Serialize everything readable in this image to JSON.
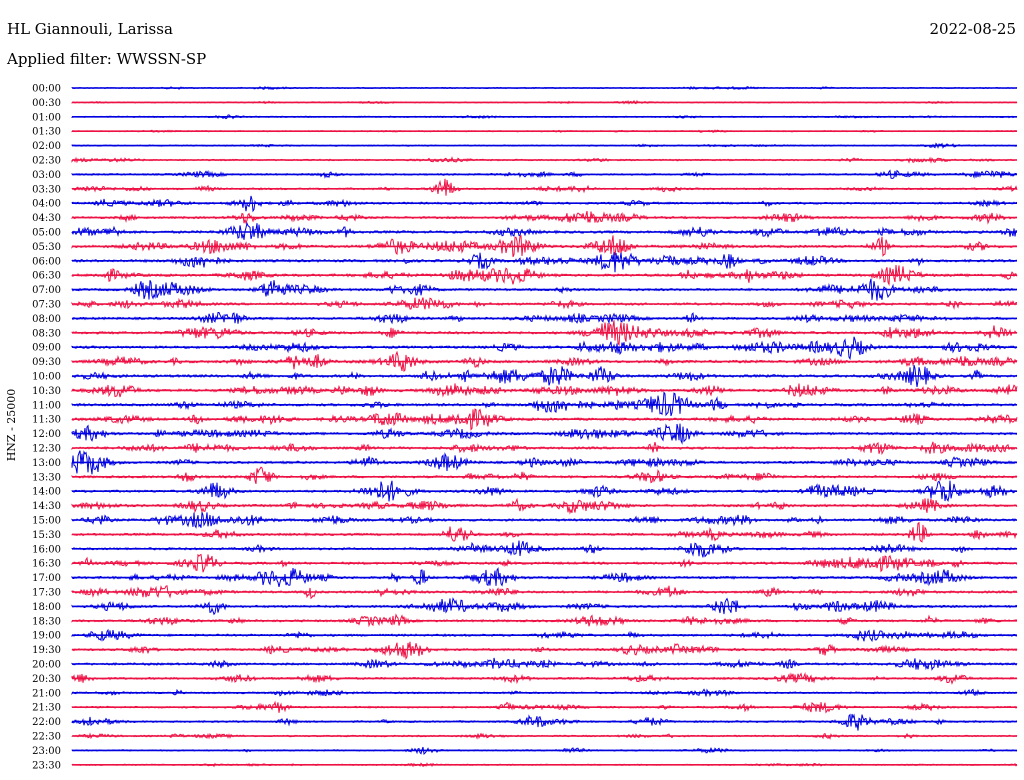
{
  "header": {
    "station": "HL Giannouli, Larissa",
    "date": "2022-08-25",
    "filter": "Applied filter: WWSSN-SP"
  },
  "chart_data": {
    "type": "line",
    "ylabel": "HNZ - 25000",
    "row_labels": [
      "00:00",
      "00:30",
      "01:00",
      "01:30",
      "02:00",
      "02:30",
      "03:00",
      "03:30",
      "04:00",
      "04:30",
      "05:00",
      "05:30",
      "06:00",
      "06:30",
      "07:00",
      "07:30",
      "08:00",
      "08:30",
      "09:00",
      "09:30",
      "10:00",
      "10:30",
      "11:00",
      "11:30",
      "12:00",
      "12:30",
      "13:00",
      "13:30",
      "14:00",
      "14:30",
      "15:00",
      "15:30",
      "16:00",
      "16:30",
      "17:00",
      "17:30",
      "18:00",
      "18:30",
      "19:00",
      "19:30",
      "20:00",
      "20:30",
      "21:00",
      "21:30",
      "22:00",
      "22:30",
      "23:00",
      "23:30"
    ],
    "colors": [
      "#0000e0",
      "#ee1144"
    ],
    "activity": [
      0.1,
      0.08,
      0.14,
      0.1,
      0.12,
      0.2,
      0.28,
      0.32,
      0.38,
      0.42,
      0.55,
      0.55,
      0.55,
      0.55,
      0.5,
      0.5,
      0.5,
      0.55,
      0.55,
      0.6,
      0.6,
      0.62,
      0.55,
      0.55,
      0.52,
      0.5,
      0.5,
      0.5,
      0.48,
      0.5,
      0.5,
      0.48,
      0.46,
      0.5,
      0.5,
      0.48,
      0.48,
      0.46,
      0.44,
      0.46,
      0.44,
      0.4,
      0.3,
      0.3,
      0.32,
      0.22,
      0.16,
      0.12
    ]
  }
}
